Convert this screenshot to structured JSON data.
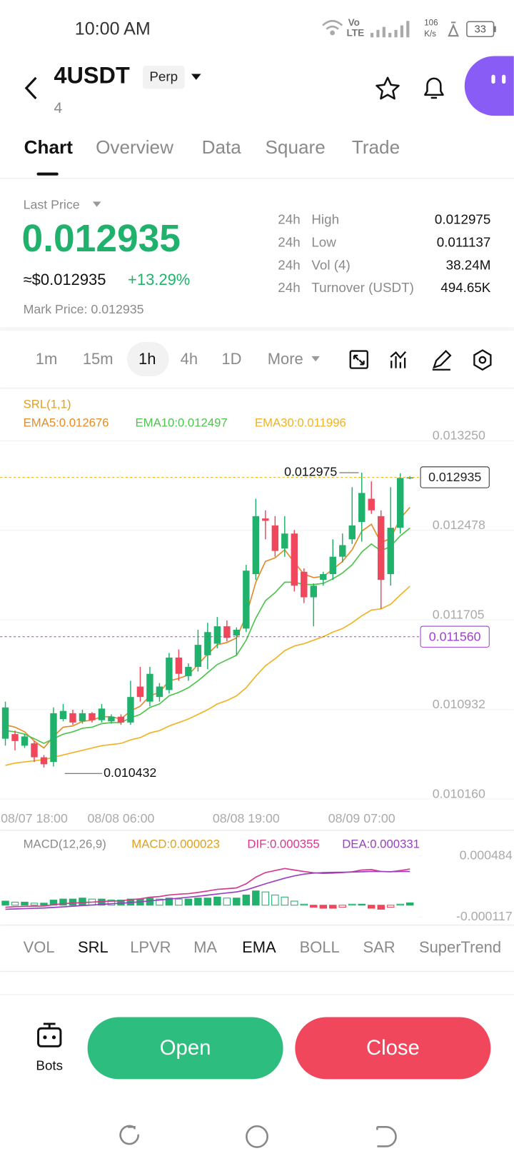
{
  "status_bar": {
    "time": "10:00 AM",
    "network_top": "Vo",
    "network_bottom": "LTE",
    "speed_value": "106",
    "speed_unit": "K/s",
    "battery": "33"
  },
  "header": {
    "symbol": "4USDT",
    "contract_type": "Perp",
    "subtitle": "4"
  },
  "tabs": [
    "Chart",
    "Overview",
    "Data",
    "Square",
    "Trade"
  ],
  "ticker": {
    "last_price_label": "Last Price",
    "last_price": "0.012935",
    "usd_price": "≈$0.012935",
    "change": "+13.29%",
    "mark_price": "Mark Price: 0.012935",
    "stats": [
      {
        "period": "24h",
        "label": "High",
        "value": "0.012975"
      },
      {
        "period": "24h",
        "label": "Low",
        "value": "0.011137"
      },
      {
        "period": "24h",
        "label": "Vol (4)",
        "value": "38.24M"
      },
      {
        "period": "24h",
        "label": "Turnover (USDT)",
        "value": "494.65K"
      }
    ]
  },
  "intervals": [
    "1m",
    "15m",
    "1h",
    "4h",
    "1D",
    "More"
  ],
  "chart_data": [
    {
      "type": "candlestick",
      "indicator_label": "SRL(1,1)",
      "up_color": "#20b26c",
      "down_color": "#f0475c",
      "categories": [
        null,
        null,
        null,
        "08/07 18:00",
        null,
        null,
        null,
        null,
        null,
        null,
        null,
        null,
        "08/08 06:00",
        null,
        null,
        null,
        null,
        null,
        null,
        null,
        null,
        null,
        null,
        null,
        null,
        "08/08 19:00",
        null,
        null,
        null,
        null,
        null,
        null,
        null,
        null,
        null,
        null,
        null,
        "08/09 07:00",
        null,
        null,
        null,
        null,
        null
      ],
      "open": [
        0.01068,
        0.01072,
        0.01062,
        0.01064,
        0.01052,
        0.01048,
        0.01085,
        0.0109,
        0.01083,
        0.0109,
        0.01084,
        0.01083,
        0.01087,
        0.01082,
        0.01113,
        0.011,
        0.01104,
        0.0111,
        0.01138,
        0.01122,
        0.0113,
        0.0114,
        0.0115,
        0.01165,
        0.01157,
        0.01163,
        0.0121,
        0.01258,
        0.01252,
        0.01232,
        0.01245,
        0.01212,
        0.0119,
        0.01205,
        0.0121,
        0.01225,
        0.0124,
        0.01255,
        0.01275,
        0.0126,
        0.0121,
        0.0125,
        0.01293
      ],
      "high": [
        0.011,
        0.01075,
        0.01072,
        0.01066,
        0.01054,
        0.01095,
        0.01098,
        0.01093,
        0.01093,
        0.01091,
        0.01098,
        0.01089,
        0.01089,
        0.01118,
        0.0113,
        0.0113,
        0.01116,
        0.01142,
        0.01145,
        0.01133,
        0.01162,
        0.01168,
        0.01173,
        0.0117,
        0.01164,
        0.01218,
        0.01275,
        0.01265,
        0.0126,
        0.0126,
        0.01248,
        0.01215,
        0.01202,
        0.01212,
        0.0124,
        0.01245,
        0.01285,
        0.012975,
        0.0129,
        0.01265,
        0.01285,
        0.01297,
        0.012945
      ],
      "low": [
        0.01062,
        0.01058,
        0.0106,
        0.01048,
        0.010432,
        0.01044,
        0.01083,
        0.0108,
        0.01081,
        0.01082,
        0.01082,
        0.01081,
        0.0108,
        0.0108,
        0.011,
        0.01096,
        0.011,
        0.01107,
        0.01118,
        0.01118,
        0.01126,
        0.01128,
        0.01146,
        0.01152,
        0.0114,
        0.0116,
        0.01205,
        0.0124,
        0.01225,
        0.01225,
        0.01195,
        0.01185,
        0.01165,
        0.012,
        0.01205,
        0.0122,
        0.01236,
        0.01238,
        0.01262,
        0.0118,
        0.012,
        0.01245,
        0.01292
      ],
      "close": [
        0.01095,
        0.01066,
        0.0107,
        0.01052,
        0.01046,
        0.0109,
        0.01092,
        0.01082,
        0.0109,
        0.01084,
        0.01094,
        0.01087,
        0.01082,
        0.01104,
        0.01104,
        0.01124,
        0.01113,
        0.01138,
        0.01124,
        0.0113,
        0.01149,
        0.0116,
        0.01165,
        0.01155,
        0.01162,
        0.01213,
        0.0126,
        0.01256,
        0.0123,
        0.01245,
        0.012,
        0.0119,
        0.012,
        0.0121,
        0.01225,
        0.01235,
        0.01252,
        0.0128,
        0.01265,
        0.01205,
        0.0125,
        0.01293,
        0.012935
      ],
      "series": [
        {
          "name": "EMA5:0.012676",
          "color": "#e38d2a",
          "values": [
            0.0108,
            0.01078,
            0.01074,
            0.01066,
            0.0106,
            0.0107,
            0.01078,
            0.01079,
            0.01083,
            0.01084,
            0.01087,
            0.01087,
            0.01085,
            0.01092,
            0.01096,
            0.01105,
            0.01108,
            0.01118,
            0.0112,
            0.01123,
            0.01132,
            0.01141,
            0.01149,
            0.01151,
            0.01155,
            0.01174,
            0.01203,
            0.01221,
            0.01224,
            0.01231,
            0.0122,
            0.0121,
            0.01207,
            0.01208,
            0.01214,
            0.01221,
            0.01231,
            0.01247,
            0.01253,
            0.01237,
            0.01241,
            0.01258,
            0.012676
          ]
        },
        {
          "name": "EMA10:0.012497",
          "color": "#4fc44f",
          "values": [
            0.01075,
            0.01074,
            0.01072,
            0.01068,
            0.01064,
            0.01068,
            0.01072,
            0.01074,
            0.01077,
            0.01078,
            0.01081,
            0.01082,
            0.01082,
            0.01086,
            0.01089,
            0.01095,
            0.01098,
            0.01105,
            0.01108,
            0.01112,
            0.01118,
            0.01125,
            0.01132,
            0.01136,
            0.0114,
            0.01153,
            0.01172,
            0.01187,
            0.01194,
            0.01203,
            0.01203,
            0.01201,
            0.01201,
            0.01202,
            0.01206,
            0.01211,
            0.01218,
            0.01229,
            0.01236,
            0.0123,
            0.01234,
            0.01243,
            0.012497
          ]
        },
        {
          "name": "EMA30:0.011996",
          "color": "#f0b322",
          "values": [
            0.01045,
            0.01047,
            0.01048,
            0.01049,
            0.0105,
            0.01052,
            0.01054,
            0.01056,
            0.01058,
            0.0106,
            0.01062,
            0.01063,
            0.01064,
            0.01067,
            0.01069,
            0.01073,
            0.01075,
            0.01079,
            0.01082,
            0.01085,
            0.01089,
            0.01093,
            0.01098,
            0.01101,
            0.01105,
            0.01112,
            0.01122,
            0.01131,
            0.01137,
            0.01144,
            0.01148,
            0.0115,
            0.01153,
            0.01156,
            0.0116,
            0.01163,
            0.01168,
            0.01174,
            0.01179,
            0.0118,
            0.01184,
            0.01192,
            0.011996
          ]
        }
      ],
      "annotations": [
        0.012975,
        0.010432
      ],
      "price_lines": [
        {
          "value": 0.012935,
          "label": "0.012935",
          "color": "#f0b322",
          "text_color": "#222222"
        },
        {
          "value": 0.01156,
          "label": "0.011560",
          "color": "#a23fd0",
          "text_color": "#a23fd0"
        }
      ],
      "ylim": [
        0.010095,
        0.013348
      ],
      "yticks": [
        {
          "value": 0.01325,
          "label": "0.013250"
        },
        0.012478,
        0.011705,
        0.010932,
        {
          "value": 0.01016,
          "label": "0.010160"
        }
      ],
      "grid": true
    },
    {
      "type": "macd",
      "title": "MACD(12,26,9)",
      "up_color": "#20b26c",
      "down_color": "#f0475c",
      "series": [
        {
          "name": "MACD:0.000023",
          "color": "#e0a020",
          "kind": "histogram",
          "values": [
            4e-05,
            3e-05,
            3e-05,
            2e-05,
            2e-05,
            5e-05,
            6e-05,
            6e-05,
            7e-05,
            6e-05,
            6e-05,
            5e-05,
            5e-05,
            6e-05,
            6e-05,
            7e-05,
            6e-05,
            7e-05,
            6e-05,
            6e-05,
            7e-05,
            7e-05,
            8e-05,
            7e-05,
            7e-05,
            0.0001,
            0.00014,
            0.00013,
            0.0001,
            8e-05,
            4e-05,
            1e-05,
            -2e-05,
            -3e-05,
            -3e-05,
            -2e-05,
            1e-05,
            1e-05,
            -3e-05,
            -4e-05,
            -2e-05,
            1e-05,
            2.3e-05
          ]
        },
        {
          "name": "DIF:0.000355",
          "color": "#d6398f",
          "kind": "line",
          "values": [
            -2e-05,
            -1.5e-05,
            -1.2e-05,
            -1e-05,
            -8e-06,
            5e-06,
            1.5e-05,
            2e-05,
            2.6e-05,
            3e-05,
            3.6e-05,
            4e-05,
            4.2e-05,
            5.5e-05,
            6.2e-05,
            7.8e-05,
            8.5e-05,
            0.0001,
            0.000108,
            0.000113,
            0.000125,
            0.00014,
            0.000155,
            0.000162,
            0.00017,
            0.00021,
            0.000275,
            0.00032,
            0.00034,
            0.00036,
            0.000345,
            0.00033,
            0.000318,
            0.000312,
            0.000315,
            0.00032,
            0.000328,
            0.000345,
            0.00035,
            0.00033,
            0.000328,
            0.00034,
            0.000355
          ]
        },
        {
          "name": "DEA:0.000331",
          "color": "#9b3fc0",
          "kind": "line",
          "values": [
            -4e-05,
            -3.7e-05,
            -3.4e-05,
            -3e-05,
            -2.7e-05,
            -2.2e-05,
            -1.6e-05,
            -1e-05,
            -4e-06,
            2e-06,
            8e-06,
            1.4e-05,
            1.9e-05,
            2.6e-05,
            3.3e-05,
            4.2e-05,
            5e-05,
            6e-05,
            6.9e-05,
            7.8e-05,
            8.8e-05,
            9.9e-05,
            0.00011,
            0.00012,
            0.00013,
            0.00015,
            0.00018,
            0.00021,
            0.000238,
            0.000265,
            0.000288,
            0.000305,
            0.000315,
            0.00032,
            0.000322,
            0.000323,
            0.000325,
            0.000328,
            0.000332,
            0.00033,
            0.000329,
            0.00033,
            0.000331
          ]
        }
      ],
      "ylim": [
        -0.000168,
        0.000528
      ],
      "yticks": [
        0.000484,
        -0.000117
      ]
    }
  ],
  "indicator_tabs": [
    "VOL",
    "SRL",
    "LPVR",
    "MA",
    "EMA",
    "BOLL",
    "SAR",
    "SuperTrend"
  ],
  "actions": {
    "bots": "Bots",
    "open": "Open",
    "close": "Close"
  }
}
